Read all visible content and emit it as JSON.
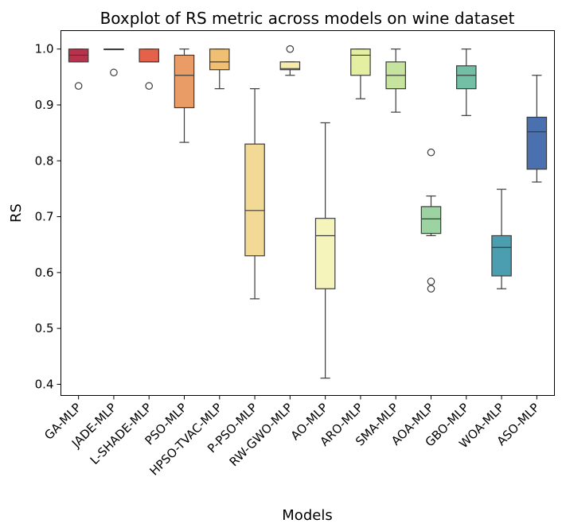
{
  "chart_data": {
    "type": "boxplot",
    "title": "Boxplot of RS metric across models on wine dataset",
    "xlabel": "Models",
    "ylabel": "RS",
    "ylim": [
      0.38,
      1.033
    ],
    "yticks": [
      0.4,
      0.5,
      0.6,
      0.7,
      0.8,
      0.9,
      1.0
    ],
    "grid": false,
    "series": [
      {
        "name": "GA-MLP",
        "whisker_low": 0.977,
        "q1": 0.977,
        "median": 0.989,
        "q3": 1.0,
        "whisker_high": 1.0,
        "outliers": [
          0.934
        ],
        "color": "#b9324c"
      },
      {
        "name": "JADE-MLP",
        "whisker_low": 1.0,
        "q1": 1.0,
        "median": 1.0,
        "q3": 1.0,
        "whisker_high": 1.0,
        "outliers": [
          0.958
        ],
        "color": "#cf4350"
      },
      {
        "name": "L-SHADE-MLP",
        "whisker_low": 0.977,
        "q1": 0.977,
        "median": 0.977,
        "q3": 1.0,
        "whisker_high": 1.0,
        "outliers": [
          0.934
        ],
        "color": "#e4614b"
      },
      {
        "name": "PSO-MLP",
        "whisker_low": 0.833,
        "q1": 0.895,
        "median": 0.953,
        "q3": 0.989,
        "whisker_high": 1.0,
        "outliers": [],
        "color": "#ea9c67"
      },
      {
        "name": "HPSO-TVAC-MLP",
        "whisker_low": 0.929,
        "q1": 0.963,
        "median": 0.977,
        "q3": 1.0,
        "whisker_high": 1.0,
        "outliers": [],
        "color": "#efbf73"
      },
      {
        "name": "P-PSO-MLP",
        "whisker_low": 0.553,
        "q1": 0.63,
        "median": 0.711,
        "q3": 0.83,
        "whisker_high": 0.929,
        "outliers": [],
        "color": "#f2d996"
      },
      {
        "name": "RW-GWO-MLP",
        "whisker_low": 0.953,
        "q1": 0.963,
        "median": 0.965,
        "q3": 0.977,
        "whisker_high": 0.977,
        "outliers": [
          1.0
        ],
        "color": "#f7ebac"
      },
      {
        "name": "AO-MLP",
        "whisker_low": 0.411,
        "q1": 0.571,
        "median": 0.666,
        "q3": 0.697,
        "whisker_high": 0.868,
        "outliers": [],
        "color": "#f5f4bb"
      },
      {
        "name": "ARO-MLP",
        "whisker_low": 0.911,
        "q1": 0.953,
        "median": 0.989,
        "q3": 1.0,
        "whisker_high": 1.0,
        "outliers": [],
        "color": "#e5efa2"
      },
      {
        "name": "SMA-MLP",
        "whisker_low": 0.887,
        "q1": 0.929,
        "median": 0.953,
        "q3": 0.977,
        "whisker_high": 1.0,
        "outliers": [],
        "color": "#c6e49e"
      },
      {
        "name": "AOA-MLP",
        "whisker_low": 0.666,
        "q1": 0.67,
        "median": 0.696,
        "q3": 0.718,
        "whisker_high": 0.737,
        "outliers": [
          0.815,
          0.584,
          0.571
        ],
        "color": "#9dd2a2"
      },
      {
        "name": "GBO-MLP",
        "whisker_low": 0.881,
        "q1": 0.929,
        "median": 0.953,
        "q3": 0.97,
        "whisker_high": 1.0,
        "outliers": [],
        "color": "#72bfa6"
      },
      {
        "name": "WOA-MLP",
        "whisker_low": 0.571,
        "q1": 0.594,
        "median": 0.645,
        "q3": 0.666,
        "whisker_high": 0.749,
        "outliers": [],
        "color": "#4a9eb0"
      },
      {
        "name": "ASO-MLP",
        "whisker_low": 0.762,
        "q1": 0.785,
        "median": 0.852,
        "q3": 0.878,
        "whisker_high": 0.953,
        "outliers": [],
        "color": "#4a70b0"
      }
    ]
  }
}
